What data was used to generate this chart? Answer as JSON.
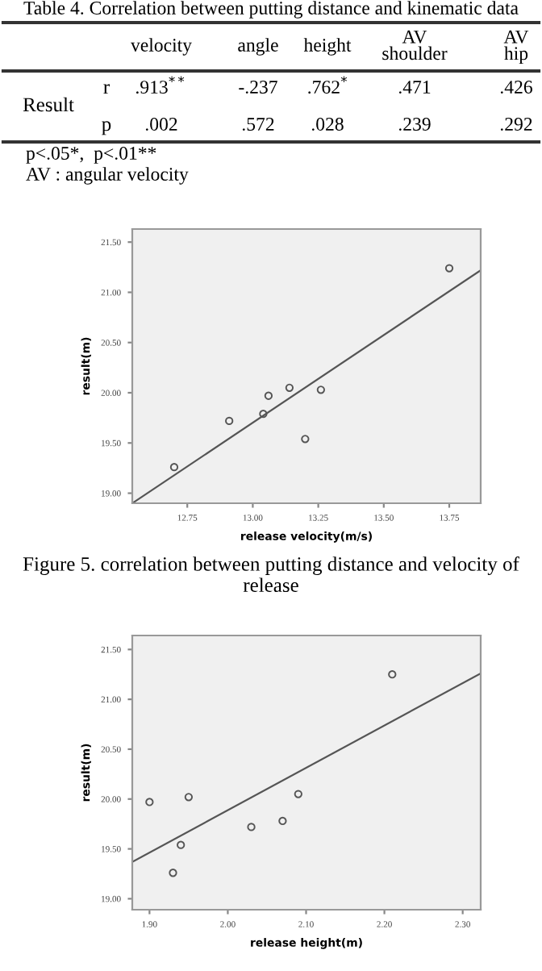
{
  "chart_data": [
    {
      "type": "other",
      "title": "Table 4. Correlation between putting distance and kinematic data",
      "categories": [
        "velocity",
        "angle",
        "height",
        "AV\nshoulder",
        "AV\nhip"
      ],
      "ylabel": "Result",
      "y_categories": [
        "r",
        "p"
      ],
      "cell_labels": [
        [
          ".913$^{**}$",
          "-.237",
          ".762$^{*}$",
          ".471",
          ".426"
        ],
        [
          ".002",
          ".572",
          ".028",
          ".239",
          ".292"
        ]
      ],
      "annotations": [
        "p<.05*,  p<.01**",
        "AV : angular velocity"
      ]
    },
    {
      "type": "scatter",
      "xlabel": "release velocity(m/s)",
      "ylabel": "result(m)",
      "xlim": [
        12.54,
        13.87
      ],
      "ylim": [
        18.9,
        21.63
      ],
      "xticks": [
        {
          "value": 12.75,
          "label": "12.75"
        },
        {
          "value": 13.0,
          "label": "13.00"
        },
        {
          "value": 13.25,
          "label": "13.25"
        },
        {
          "value": 13.5,
          "label": "13.50"
        },
        {
          "value": 13.75,
          "label": "13.75"
        }
      ],
      "yticks": [
        {
          "value": 19.0,
          "label": "19.00"
        },
        {
          "value": 19.5,
          "label": "19.50"
        },
        {
          "value": 20.0,
          "label": "20.00"
        },
        {
          "value": 20.5,
          "label": "20.50"
        },
        {
          "value": 21.0,
          "label": "21.00"
        },
        {
          "value": 21.5,
          "label": "21.50"
        }
      ],
      "series": [
        {
          "marker": "circle",
          "color": "#555555",
          "x": [
            12.7,
            12.91,
            13.04,
            13.06,
            13.14,
            13.2,
            13.26,
            13.75
          ],
          "values": [
            19.26,
            19.72,
            19.79,
            19.97,
            20.05,
            19.54,
            20.03,
            21.24
          ]
        },
        {
          "type": "line",
          "marker": "none",
          "color": "#555555",
          "x": [
            12.54,
            13.87
          ],
          "values": [
            18.9,
            21.22
          ]
        }
      ],
      "annotations": [
        "Figure 5. correlation between putting distance and velocity of release"
      ]
    },
    {
      "type": "scatter",
      "xlabel": "release height(m)",
      "ylabel": "result(m)",
      "xlim": [
        1.878,
        2.323
      ],
      "ylim": [
        18.89,
        21.64
      ],
      "xticks": [
        {
          "value": 1.9,
          "label": "1.90"
        },
        {
          "value": 2.0,
          "label": "2.00"
        },
        {
          "value": 2.1,
          "label": "2.10"
        },
        {
          "value": 2.2,
          "label": "2.20"
        },
        {
          "value": 2.3,
          "label": "2.30"
        }
      ],
      "yticks": [
        {
          "value": 19.0,
          "label": "19.00"
        },
        {
          "value": 19.5,
          "label": "19.50"
        },
        {
          "value": 20.0,
          "label": "20.00"
        },
        {
          "value": 20.5,
          "label": "20.50"
        },
        {
          "value": 21.0,
          "label": "21.00"
        },
        {
          "value": 21.5,
          "label": "21.50"
        }
      ],
      "series": [
        {
          "marker": "circle",
          "color": "#555555",
          "x": [
            1.9,
            1.93,
            1.94,
            1.95,
            2.03,
            2.07,
            2.09,
            2.21
          ],
          "values": [
            19.97,
            19.26,
            19.54,
            20.02,
            19.72,
            19.78,
            20.05,
            21.25
          ]
        },
        {
          "type": "line",
          "marker": "none",
          "color": "#555555",
          "x": [
            1.878,
            2.323
          ],
          "values": [
            19.37,
            21.26
          ]
        }
      ]
    }
  ]
}
